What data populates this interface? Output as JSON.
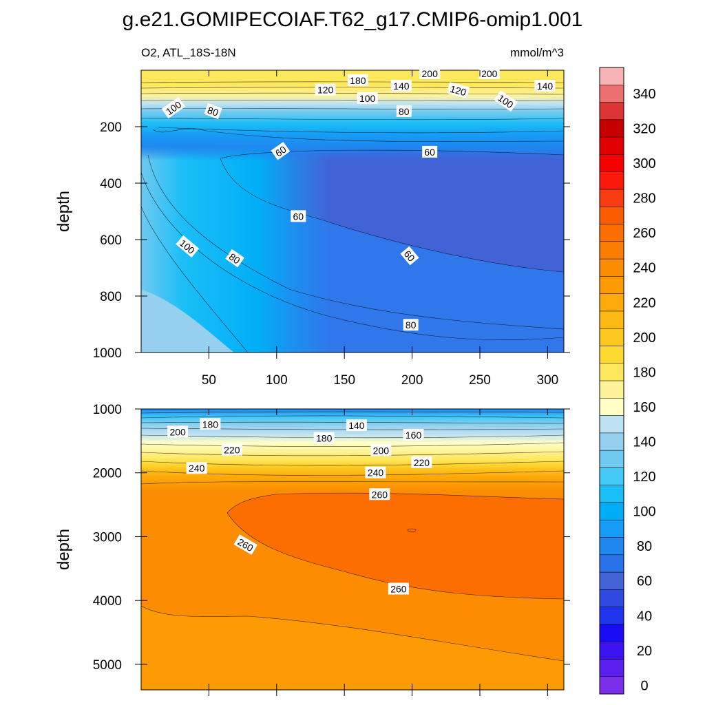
{
  "figure": {
    "title": "g.e21.GOMIPECOIAF.T62_g17.CMIP6-omip1.001",
    "left_subtitle": "O2, ATL_18S-18N",
    "right_subtitle": "mmol/m^3"
  },
  "chart_data": [
    {
      "type": "contour",
      "panel": "upper",
      "variable": "O2",
      "units": "mmol/m^3",
      "region": "ATL_18S-18N",
      "xlabel": "",
      "ylabel": "depth",
      "xlim": [
        0,
        312
      ],
      "ylim": [
        1000,
        0
      ],
      "xticks": [
        50,
        100,
        150,
        200,
        250,
        300
      ],
      "yticks": [
        200,
        400,
        600,
        800,
        1000
      ],
      "contour_labels": [
        {
          "text": "200",
          "x": 213,
          "y": 12,
          "angle": 0
        },
        {
          "text": "200",
          "x": 257,
          "y": 12,
          "angle": 0
        },
        {
          "text": "180",
          "x": 160,
          "y": 36,
          "angle": 0
        },
        {
          "text": "140",
          "x": 192,
          "y": 56,
          "angle": 0
        },
        {
          "text": "140",
          "x": 298,
          "y": 56,
          "angle": 0
        },
        {
          "text": "120",
          "x": 136,
          "y": 70,
          "angle": 0
        },
        {
          "text": "120",
          "x": 234,
          "y": 72,
          "angle": 15
        },
        {
          "text": "100",
          "x": 167,
          "y": 100,
          "angle": 0
        },
        {
          "text": "100",
          "x": 24,
          "y": 134,
          "angle": -35
        },
        {
          "text": "100",
          "x": 269,
          "y": 110,
          "angle": 35
        },
        {
          "text": "80",
          "x": 53,
          "y": 146,
          "angle": 20
        },
        {
          "text": "80",
          "x": 194,
          "y": 146,
          "angle": 0
        },
        {
          "text": "60",
          "x": 103,
          "y": 287,
          "angle": -35
        },
        {
          "text": "60",
          "x": 213,
          "y": 290,
          "angle": 0
        },
        {
          "text": "60",
          "x": 116,
          "y": 518,
          "angle": 0
        },
        {
          "text": "60",
          "x": 198,
          "y": 658,
          "angle": 50
        },
        {
          "text": "100",
          "x": 34,
          "y": 625,
          "angle": 40
        },
        {
          "text": "80",
          "x": 69,
          "y": 667,
          "angle": 35
        },
        {
          "text": "80",
          "x": 199,
          "y": 903,
          "angle": 0
        }
      ]
    },
    {
      "type": "contour",
      "panel": "lower",
      "variable": "O2",
      "units": "mmol/m^3",
      "xlabel": "",
      "ylabel": "depth",
      "xlim": [
        0,
        312
      ],
      "ylim": [
        5400,
        1000
      ],
      "xticks": [
        50,
        100,
        150,
        200,
        250,
        300
      ],
      "yticks": [
        1000,
        2000,
        3000,
        4000,
        5000
      ],
      "contour_labels": [
        {
          "text": "180",
          "x": 51,
          "y": 1240,
          "angle": 0
        },
        {
          "text": "200",
          "x": 27,
          "y": 1360,
          "angle": 0
        },
        {
          "text": "140",
          "x": 159,
          "y": 1260,
          "angle": 0
        },
        {
          "text": "180",
          "x": 135,
          "y": 1460,
          "angle": 0
        },
        {
          "text": "160",
          "x": 201,
          "y": 1410,
          "angle": 0
        },
        {
          "text": "220",
          "x": 67,
          "y": 1640,
          "angle": 0
        },
        {
          "text": "200",
          "x": 177,
          "y": 1650,
          "angle": 0
        },
        {
          "text": "220",
          "x": 207,
          "y": 1840,
          "angle": 0
        },
        {
          "text": "240",
          "x": 41,
          "y": 1930,
          "angle": 0
        },
        {
          "text": "240",
          "x": 173,
          "y": 2000,
          "angle": 0
        },
        {
          "text": "260",
          "x": 176,
          "y": 2340,
          "angle": 0
        },
        {
          "text": "260",
          "x": 77,
          "y": 3130,
          "angle": 30
        },
        {
          "text": "260",
          "x": 190,
          "y": 3820,
          "angle": 0
        }
      ]
    }
  ],
  "colorbar": {
    "levels": [
      0,
      10,
      20,
      30,
      40,
      50,
      60,
      70,
      80,
      90,
      100,
      110,
      120,
      130,
      140,
      150,
      160,
      170,
      180,
      190,
      200,
      210,
      220,
      230,
      240,
      250,
      260,
      270,
      280,
      290,
      300,
      310,
      320,
      330,
      340,
      350
    ],
    "tick_labels": [
      "0",
      "20",
      "40",
      "60",
      "80",
      "100",
      "120",
      "140",
      "160",
      "180",
      "200",
      "220",
      "240",
      "260",
      "280",
      "300",
      "320",
      "340"
    ],
    "colors": [
      "#7a2eea",
      "#5a1fec",
      "#3b12f0",
      "#1a0cf5",
      "#1e34ee",
      "#2f49e1",
      "#4163d6",
      "#2a72e8",
      "#1e88f0",
      "#169cf6",
      "#00aef7",
      "#1abef7",
      "#43c8f5",
      "#70c9f0",
      "#95d0ee",
      "#bde2f3",
      "#ffffc6",
      "#fff39a",
      "#fde75b",
      "#fed930",
      "#fdc81f",
      "#fdba14",
      "#fdaa0a",
      "#fd9b05",
      "#fc8c02",
      "#fc7e00",
      "#fc6e00",
      "#fb5c00",
      "#fa3c12",
      "#fb190b",
      "#f70000",
      "#e00000",
      "#c60000",
      "#dd3535",
      "#ec7070",
      "#f8b4b4"
    ]
  },
  "colors": {
    "upper_background": "#2f77ea",
    "lower_background": "#fc8c02"
  }
}
